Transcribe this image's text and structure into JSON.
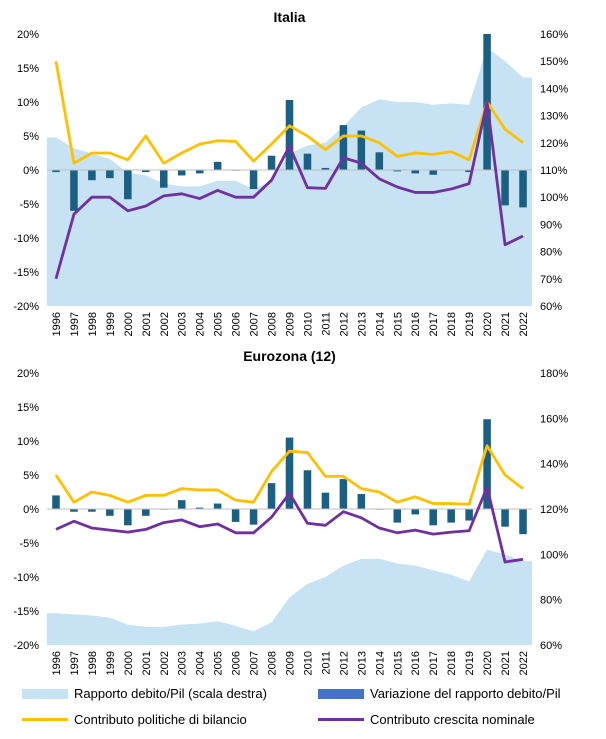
{
  "legend": {
    "area": "Rapporto debito/Pil (scala destra)",
    "bars": "Variazione del rapporto debito/Pil",
    "policy": "Contributo politiche di bilancio",
    "growth": "Contributo crescita nominale"
  },
  "colors": {
    "area": "#c6e2f3",
    "bars": "#1a5f84",
    "bars_legend": "#4472c4",
    "policy": "#ffc000",
    "growth": "#7030a0"
  },
  "chart_data": [
    {
      "type": "bar",
      "title": "Italia",
      "categories": [
        "1996",
        "1997",
        "1998",
        "1999",
        "2000",
        "2001",
        "2002",
        "2003",
        "2004",
        "2005",
        "2006",
        "2007",
        "2008",
        "2009",
        "2010",
        "2011",
        "2012",
        "2013",
        "2014",
        "2015",
        "2016",
        "2017",
        "2018",
        "2019",
        "2020",
        "2021",
        "2022"
      ],
      "y_left": {
        "min": -20,
        "max": 20,
        "step": 5,
        "tick_labels": [
          "-20%",
          "-15%",
          "-10%",
          "-5%",
          "0%",
          "5%",
          "10%",
          "15%",
          "20%"
        ]
      },
      "y_right": {
        "min": 60,
        "max": 160,
        "step": 10,
        "tick_labels": [
          "60%",
          "70%",
          "80%",
          "90%",
          "100%",
          "110%",
          "120%",
          "130%",
          "140%",
          "150%",
          "160%"
        ]
      },
      "series": [
        {
          "name": "Rapporto debito/Pil (scala destra)",
          "kind": "area",
          "axis": "right",
          "values": [
            122,
            118,
            116,
            114,
            109,
            108,
            105,
            104,
            104,
            106,
            106,
            103,
            106,
            116,
            119,
            120,
            126,
            133,
            136,
            135,
            135,
            134,
            134.5,
            134,
            155,
            150,
            144
          ]
        },
        {
          "name": "Variazione del rapporto debito/Pil",
          "kind": "bar",
          "axis": "left",
          "values": [
            -0.3,
            -6,
            -1.5,
            -1.2,
            -4.3,
            -0.3,
            -2.6,
            -0.8,
            -0.5,
            1.2,
            -0.1,
            -2.8,
            2.1,
            10.3,
            2.4,
            0.3,
            6.6,
            5.8,
            2.6,
            -0.2,
            -0.5,
            -0.7,
            0,
            -0.3,
            20,
            -5.2,
            -5.5
          ]
        },
        {
          "name": "Contributo politiche di bilancio",
          "kind": "line",
          "axis": "left",
          "values": [
            16,
            1,
            2.5,
            2.5,
            1.5,
            5,
            1,
            2.5,
            3.8,
            4.3,
            4.2,
            1.3,
            3.8,
            6.5,
            5,
            3,
            5,
            5,
            4,
            2,
            2.5,
            2.3,
            2.7,
            1.5,
            10,
            6,
            4
          ]
        },
        {
          "name": "Contributo crescita nominale",
          "kind": "line",
          "axis": "left",
          "values": [
            -16,
            -6.5,
            -4,
            -4,
            -6,
            -5.3,
            -3.8,
            -3.5,
            -4.2,
            -3,
            -4,
            -4,
            -1.5,
            3.5,
            -2.6,
            -2.7,
            1.8,
            1,
            -1.3,
            -2.5,
            -3.3,
            -3.3,
            -2.8,
            -2,
            10,
            -11,
            -9.7
          ]
        }
      ]
    },
    {
      "type": "bar",
      "title": "Eurozona (12)",
      "categories": [
        "1996",
        "1997",
        "1998",
        "1999",
        "2000",
        "2001",
        "2002",
        "2003",
        "2004",
        "2005",
        "2006",
        "2007",
        "2008",
        "2009",
        "2010",
        "2011",
        "2012",
        "2013",
        "2014",
        "2015",
        "2016",
        "2017",
        "2018",
        "2019",
        "2020",
        "2021",
        "2022"
      ],
      "y_left": {
        "min": -20,
        "max": 20,
        "step": 5,
        "tick_labels": [
          "-20%",
          "-15%",
          "-10%",
          "-5%",
          "0%",
          "5%",
          "10%",
          "15%",
          "20%"
        ]
      },
      "y_right": {
        "min": 60,
        "max": 180,
        "step": 20,
        "tick_labels": [
          "60%",
          "80%",
          "100%",
          "120%",
          "140%",
          "160%",
          "180%"
        ]
      },
      "series": [
        {
          "name": "Rapporto debito/Pil (scala destra)",
          "kind": "area",
          "axis": "right",
          "values": [
            74,
            73.5,
            73,
            72,
            69,
            68,
            68,
            69,
            69.5,
            70.5,
            68.5,
            66,
            70,
            81,
            87,
            90,
            95,
            98,
            98,
            96,
            95,
            93,
            91,
            88,
            102,
            100,
            97
          ]
        },
        {
          "name": "Variazione del rapporto debito/Pil",
          "kind": "bar",
          "axis": "left",
          "values": [
            2,
            -0.4,
            -0.4,
            -1,
            -2.4,
            -1,
            -0.1,
            1.3,
            0.2,
            0.8,
            -1.9,
            -2.3,
            3.8,
            10.5,
            5.7,
            2.4,
            4.4,
            2.2,
            -0.1,
            -2,
            -0.8,
            -2.4,
            -2,
            -1.7,
            13.2,
            -2.6,
            -3.7
          ]
        },
        {
          "name": "Contributo politiche di bilancio",
          "kind": "line",
          "axis": "left",
          "values": [
            5,
            1,
            2.5,
            2,
            1,
            2,
            2,
            3,
            2.8,
            2.8,
            1.3,
            1,
            5.5,
            8.5,
            8.3,
            4.8,
            4.8,
            3,
            2.5,
            1,
            1.8,
            0.8,
            0.8,
            0.7,
            9.3,
            5,
            3
          ]
        },
        {
          "name": "Contributo crescita nominale",
          "kind": "line",
          "axis": "left",
          "values": [
            -3,
            -1.8,
            -2.8,
            -3.1,
            -3.4,
            -3,
            -2,
            -1.6,
            -2.6,
            -2.2,
            -3.5,
            -3.5,
            -1.2,
            2.3,
            -2.1,
            -2.4,
            -0.4,
            -1.3,
            -2.8,
            -3.5,
            -3.1,
            -3.7,
            -3.4,
            -3.2,
            3.2,
            -7.8,
            -7.4
          ]
        }
      ]
    }
  ]
}
